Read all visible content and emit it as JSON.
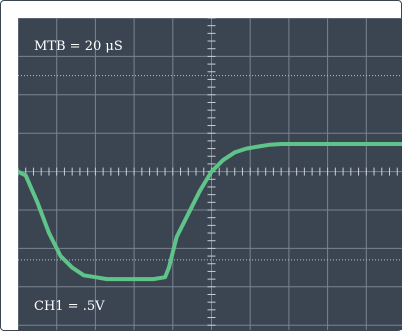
{
  "scope": {
    "timebase_label": "MTB = 20 μS",
    "channel_label": "CH1 = .5V",
    "colors": {
      "screen_background": "#3b4552",
      "grid": "#7a848f",
      "trace": "#5fc48a",
      "text": "#ffffff"
    }
  },
  "chart_data": {
    "type": "line",
    "title": "",
    "xlabel": "",
    "ylabel": "",
    "grid": true,
    "divisions": {
      "x": 10,
      "y": 8
    },
    "xlim": [
      -5,
      5
    ],
    "ylim": [
      -4,
      4
    ],
    "series": [
      {
        "x": [
          -5.0,
          -4.8,
          -4.5,
          -4.2,
          -3.9,
          -3.6,
          -3.3,
          -3.0,
          -2.7,
          -2.4,
          -2.1,
          -1.8,
          -1.5,
          -1.2,
          -1.1,
          -0.9,
          -0.6,
          -0.3,
          0.0,
          0.3,
          0.6,
          0.9,
          1.2,
          1.5,
          1.8,
          2.1,
          2.4,
          3.0,
          4.0,
          5.0
        ],
        "values": [
          0.0,
          -0.1,
          -0.8,
          -1.6,
          -2.2,
          -2.5,
          -2.7,
          -2.75,
          -2.8,
          -2.8,
          -2.8,
          -2.8,
          -2.8,
          -2.75,
          -2.5,
          -1.7,
          -1.1,
          -0.5,
          0.0,
          0.3,
          0.5,
          0.6,
          0.65,
          0.7,
          0.72,
          0.72,
          0.72,
          0.72,
          0.72,
          0.72
        ]
      }
    ]
  }
}
